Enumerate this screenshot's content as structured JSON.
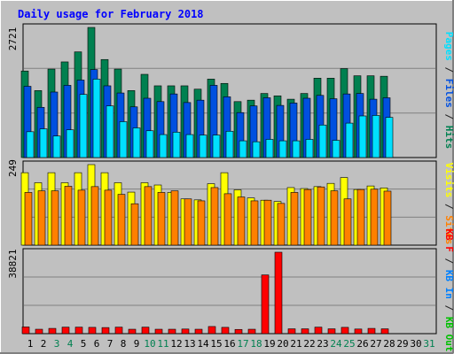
{
  "chart_data": [
    {
      "type": "bar",
      "title": "Daily usage for February 2018",
      "ymax_label": "2721",
      "ylim": [
        0,
        2721
      ],
      "grid": true,
      "right_labels": [
        {
          "text": "Pages",
          "color": "#00E0FF"
        },
        {
          "text": " / ",
          "color": "#202020"
        },
        {
          "text": "Files",
          "color": "#0050E0"
        },
        {
          "text": " / ",
          "color": "#202020"
        },
        {
          "text": "Hits",
          "color": "#008050"
        }
      ],
      "categories": [
        "1",
        "2",
        "3",
        "4",
        "5",
        "6",
        "7",
        "8",
        "9",
        "10",
        "11",
        "12",
        "13",
        "14",
        "15",
        "16",
        "17",
        "18",
        "19",
        "20",
        "21",
        "22",
        "23",
        "24",
        "25",
        "26",
        "27",
        "28",
        "29",
        "30",
        "31"
      ],
      "weekend_days": [
        "3",
        "4",
        "10",
        "11",
        "17",
        "18",
        "24",
        "25",
        "31"
      ],
      "series": [
        {
          "name": "Hits",
          "color": "#008050",
          "values": [
            1810,
            1400,
            1850,
            2000,
            2210,
            2721,
            2050,
            1850,
            1400,
            1740,
            1500,
            1500,
            1500,
            1430,
            1640,
            1550,
            1170,
            1200,
            1340,
            1290,
            1220,
            1340,
            1660,
            1660,
            1860,
            1710,
            1710,
            1700,
            0,
            0,
            0
          ]
        },
        {
          "name": "Files",
          "color": "#0050E0",
          "values": [
            1490,
            1050,
            1370,
            1510,
            1620,
            1840,
            1500,
            1350,
            1060,
            1240,
            1170,
            1330,
            1150,
            1200,
            1510,
            1270,
            940,
            1080,
            1250,
            1090,
            1140,
            1240,
            1300,
            1230,
            1330,
            1340,
            1220,
            1250,
            0,
            0,
            0
          ]
        },
        {
          "name": "Pages",
          "color": "#00E0FF",
          "values": [
            540,
            600,
            450,
            580,
            1320,
            1640,
            1080,
            750,
            620,
            560,
            480,
            530,
            480,
            470,
            470,
            550,
            350,
            330,
            380,
            350,
            350,
            380,
            680,
            360,
            720,
            870,
            880,
            840,
            0,
            0,
            0
          ]
        }
      ]
    },
    {
      "type": "bar",
      "ymax_label": "249",
      "ylim": [
        0,
        249
      ],
      "grid": true,
      "right_labels": [
        {
          "text": "Visits",
          "color": "#FFFF00"
        },
        {
          "text": " / ",
          "color": "#202020"
        },
        {
          "text": "Sites",
          "color": "#FF8000"
        }
      ],
      "categories": [
        "1",
        "2",
        "3",
        "4",
        "5",
        "6",
        "7",
        "8",
        "9",
        "10",
        "11",
        "12",
        "13",
        "14",
        "15",
        "16",
        "17",
        "18",
        "19",
        "20",
        "21",
        "22",
        "23",
        "24",
        "25",
        "26",
        "27",
        "28",
        "29",
        "30",
        "31"
      ],
      "series": [
        {
          "name": "Visits",
          "color": "#FFFF00",
          "values": [
            224,
            193,
            224,
            193,
            224,
            249,
            224,
            193,
            164,
            193,
            186,
            163,
            143,
            140,
            190,
            224,
            171,
            146,
            139,
            135,
            178,
            175,
            181,
            191,
            209,
            172,
            183,
            177,
            0,
            0,
            0
          ]
        },
        {
          "name": "Sites",
          "color": "#FF8000",
          "values": [
            163,
            168,
            168,
            182,
            170,
            181,
            170,
            157,
            128,
            181,
            163,
            168,
            143,
            137,
            178,
            159,
            149,
            137,
            139,
            129,
            163,
            172,
            180,
            168,
            143,
            172,
            173,
            167,
            0,
            0,
            0
          ]
        }
      ]
    },
    {
      "type": "bar",
      "ymax_label": "38821",
      "ylim": [
        0,
        38821
      ],
      "grid": true,
      "right_labels": [
        {
          "text": "KB F",
          "color": "#FF0000"
        },
        {
          "text": " / ",
          "color": "#202020"
        },
        {
          "text": "KB In",
          "color": "#0080FF"
        },
        {
          "text": " / ",
          "color": "#202020"
        },
        {
          "text": "KB Out",
          "color": "#00C000"
        }
      ],
      "categories": [
        "1",
        "2",
        "3",
        "4",
        "5",
        "6",
        "7",
        "8",
        "9",
        "10",
        "11",
        "12",
        "13",
        "14",
        "15",
        "16",
        "17",
        "18",
        "19",
        "20",
        "21",
        "22",
        "23",
        "24",
        "25",
        "26",
        "27",
        "28",
        "29",
        "30",
        "31"
      ],
      "series": [
        {
          "name": "KB F",
          "color": "#FF0000",
          "values": [
            3200,
            2100,
            2500,
            3100,
            3100,
            3000,
            2900,
            3100,
            2100,
            3100,
            2100,
            2100,
            2200,
            2100,
            3400,
            3000,
            2000,
            2100,
            28000,
            38821,
            2300,
            2300,
            3100,
            2300,
            3000,
            2200,
            2500,
            2300,
            0,
            0,
            0
          ]
        }
      ]
    }
  ]
}
